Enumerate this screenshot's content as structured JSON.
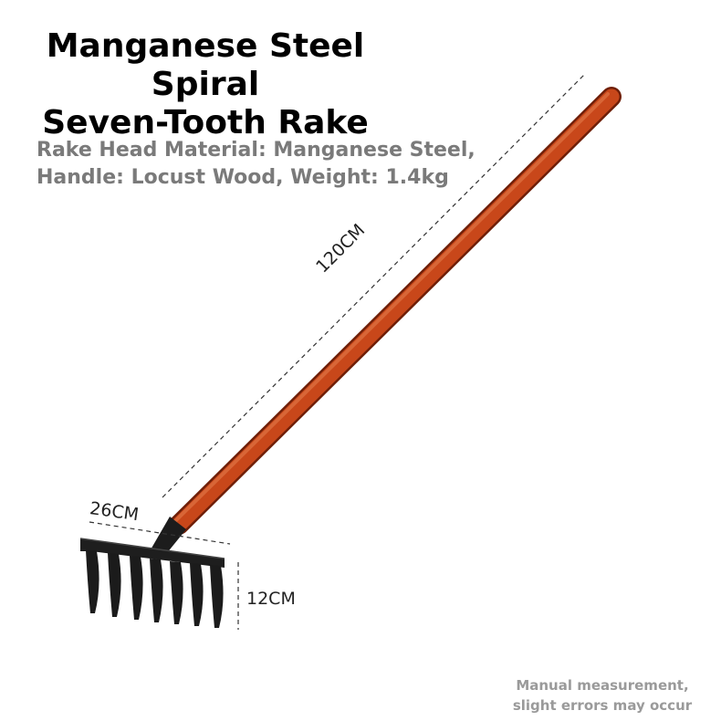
{
  "title": {
    "line1": "Manganese Steel Spiral",
    "line2": "Seven-Tooth Rake"
  },
  "specs": {
    "line1": "Rake Head Material: Manganese Steel,",
    "line2": "Handle: Locust Wood, Weight: 1.4kg"
  },
  "dimensions": {
    "handle_length": "120CM",
    "head_width": "26CM",
    "tooth_length": "12CM"
  },
  "note": {
    "line1": "Manual measurement,",
    "line2": "slight errors may occur"
  },
  "colors": {
    "handle": "#c8471a",
    "head": "#1a1a1a",
    "background": "#ffffff"
  }
}
